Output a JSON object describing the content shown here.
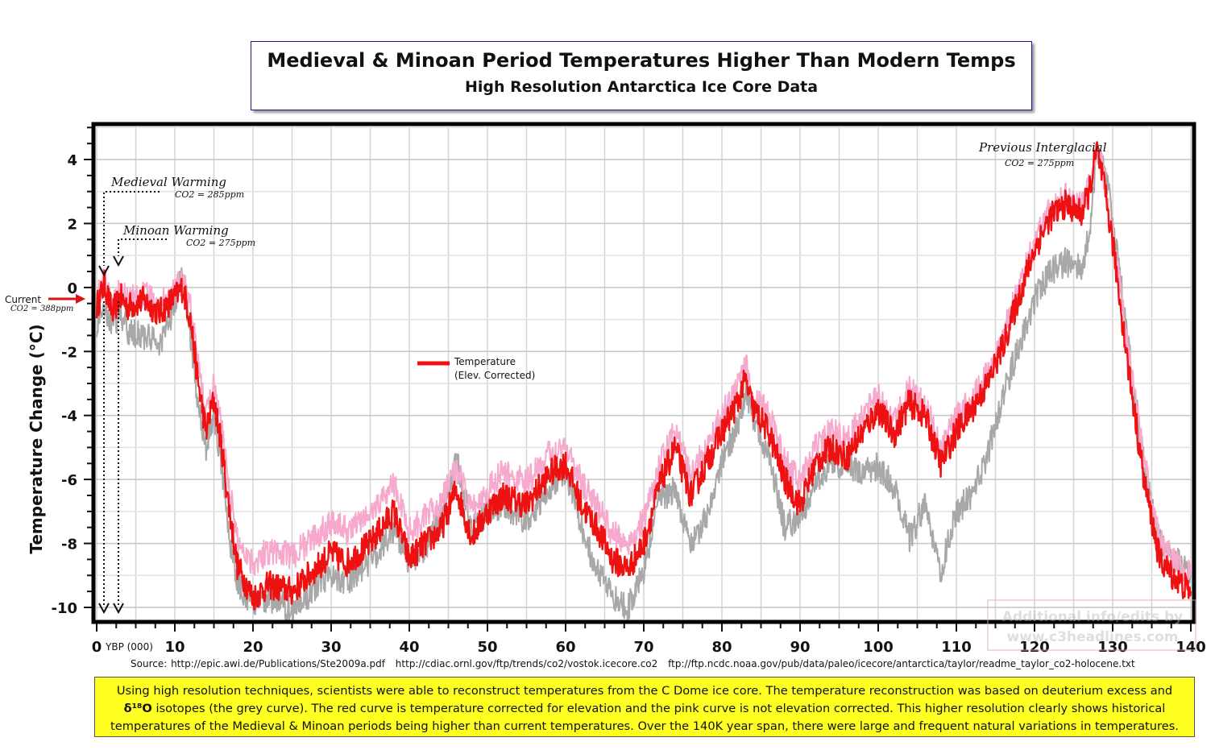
{
  "title": "Medieval & Minoan Period Temperatures Higher Than Modern Temps",
  "subtitle": "High Resolution Antarctica Ice Core Data",
  "chart_data": {
    "type": "line",
    "title": "Medieval & Minoan Period Temperatures Higher Than Modern Temps",
    "subtitle": "High Resolution Antarctica Ice Core Data",
    "xlabel": "YBP (000)",
    "ylabel": "Temperature Change (°C)",
    "xlim": [
      0,
      140
    ],
    "ylim": [
      -10.5,
      5
    ],
    "x_ticks": [
      "0",
      "10",
      "20",
      "30",
      "40",
      "50",
      "60",
      "70",
      "80",
      "90",
      "100",
      "110",
      "120",
      "130",
      "140"
    ],
    "y_ticks": [
      "4",
      "2",
      "0",
      "-2",
      "-4",
      "-6",
      "-8",
      "-10"
    ],
    "grid": true,
    "legend": {
      "placement": "center",
      "label_line1": "Temperature",
      "label_line2": "(Elev. Corrected)"
    },
    "series": [
      {
        "name": "Temperature (Elev. Corrected)",
        "color": "#ee1111",
        "x": [
          0,
          1,
          2,
          3,
          4,
          6,
          8,
          10,
          11,
          12,
          13,
          14,
          15,
          16,
          17,
          18,
          20,
          22,
          25,
          28,
          30,
          32,
          35,
          38,
          40,
          42,
          44,
          46,
          48,
          50,
          52,
          55,
          58,
          60,
          62,
          64,
          66,
          68,
          70,
          72,
          74,
          76,
          78,
          80,
          82,
          83,
          84,
          86,
          88,
          90,
          92,
          94,
          96,
          98,
          100,
          102,
          104,
          106,
          108,
          110,
          112,
          114,
          116,
          118,
          120,
          122,
          124,
          126,
          127,
          128,
          129,
          130,
          132,
          134,
          136,
          138,
          140
        ],
        "y": [
          -0.6,
          0.1,
          -0.8,
          -0.3,
          -0.6,
          -0.4,
          -0.8,
          -0.3,
          0.0,
          -1.0,
          -3.0,
          -4.5,
          -3.5,
          -5.0,
          -7.0,
          -8.7,
          -9.7,
          -9.3,
          -9.5,
          -8.8,
          -8.3,
          -8.6,
          -8.0,
          -7.0,
          -8.5,
          -8.0,
          -7.6,
          -6.3,
          -7.8,
          -7.0,
          -6.5,
          -6.8,
          -5.8,
          -5.5,
          -6.8,
          -7.5,
          -8.5,
          -8.8,
          -8.0,
          -6.2,
          -5.0,
          -6.5,
          -5.5,
          -4.5,
          -3.6,
          -2.9,
          -3.8,
          -4.5,
          -6.0,
          -6.8,
          -5.5,
          -5.0,
          -5.3,
          -4.5,
          -3.8,
          -4.6,
          -3.6,
          -4.0,
          -5.5,
          -4.5,
          -3.8,
          -3.0,
          -1.8,
          -0.3,
          1.2,
          2.2,
          2.6,
          2.3,
          3.0,
          4.3,
          3.0,
          1.4,
          -2.5,
          -6.0,
          -8.5,
          -9.1,
          -9.5
        ]
      },
      {
        "name": "Temperature (not elevation corrected)",
        "color": "#f6a9cd",
        "x": [
          0,
          1,
          2,
          3,
          4,
          6,
          8,
          10,
          11,
          12,
          13,
          14,
          15,
          16,
          17,
          18,
          20,
          22,
          25,
          28,
          30,
          32,
          35,
          38,
          40,
          42,
          44,
          46,
          48,
          50,
          52,
          55,
          58,
          60,
          62,
          64,
          66,
          68,
          70,
          72,
          74,
          76,
          78,
          80,
          82,
          83,
          84,
          86,
          88,
          90,
          92,
          94,
          96,
          98,
          100,
          102,
          104,
          106,
          108,
          110,
          112,
          114,
          116,
          118,
          120,
          122,
          124,
          126,
          127,
          128,
          129,
          130,
          132,
          134,
          136,
          138,
          140
        ],
        "y": [
          -0.4,
          0.3,
          -0.6,
          -0.1,
          -0.4,
          -0.2,
          -0.6,
          -0.1,
          0.3,
          -0.6,
          -2.5,
          -4.0,
          -3.0,
          -4.4,
          -6.3,
          -7.9,
          -8.6,
          -8.2,
          -8.4,
          -7.8,
          -7.3,
          -7.6,
          -7.1,
          -6.1,
          -7.6,
          -7.2,
          -6.8,
          -5.6,
          -7.0,
          -6.3,
          -5.8,
          -6.1,
          -5.2,
          -4.9,
          -6.1,
          -6.8,
          -7.7,
          -8.0,
          -7.3,
          -5.6,
          -4.5,
          -5.9,
          -5.0,
          -4.0,
          -3.1,
          -2.4,
          -3.3,
          -4.0,
          -5.4,
          -6.1,
          -5.0,
          -4.5,
          -4.8,
          -4.0,
          -3.4,
          -4.2,
          -3.2,
          -3.6,
          -5.0,
          -4.1,
          -3.5,
          -2.7,
          -1.5,
          0.0,
          1.4,
          2.4,
          2.8,
          2.5,
          3.2,
          4.5,
          3.3,
          1.7,
          -2.0,
          -5.4,
          -7.9,
          -8.6,
          -9.0
        ]
      },
      {
        "name": "Deuterium excess and δ18O isotopes",
        "color": "#a8a8a8",
        "x": [
          0,
          1,
          2,
          3,
          4,
          6,
          8,
          10,
          11,
          12,
          13,
          14,
          15,
          16,
          17,
          18,
          20,
          22,
          25,
          28,
          30,
          32,
          35,
          38,
          40,
          42,
          44,
          46,
          48,
          50,
          52,
          55,
          58,
          60,
          62,
          64,
          66,
          68,
          70,
          72,
          74,
          76,
          78,
          80,
          82,
          83,
          84,
          86,
          88,
          90,
          92,
          94,
          96,
          98,
          100,
          102,
          104,
          106,
          108,
          110,
          112,
          114,
          116,
          118,
          120,
          122,
          124,
          126,
          127,
          128,
          129,
          130,
          132,
          134,
          136,
          138,
          140
        ],
        "y": [
          -1.2,
          -0.5,
          -1.3,
          -0.8,
          -1.4,
          -1.5,
          -1.8,
          -0.6,
          0.6,
          -1.6,
          -3.6,
          -5.0,
          -4.0,
          -5.6,
          -7.8,
          -9.3,
          -9.9,
          -9.7,
          -10.1,
          -9.4,
          -8.9,
          -9.2,
          -8.6,
          -7.5,
          -8.6,
          -8.1,
          -7.3,
          -5.3,
          -7.6,
          -7.0,
          -6.8,
          -7.3,
          -6.2,
          -5.7,
          -7.5,
          -8.9,
          -9.6,
          -10.0,
          -8.9,
          -6.6,
          -6.3,
          -8.0,
          -7.2,
          -5.5,
          -4.3,
          -3.3,
          -4.1,
          -5.2,
          -7.5,
          -7.2,
          -6.0,
          -5.6,
          -5.5,
          -5.8,
          -5.6,
          -6.2,
          -7.8,
          -6.8,
          -8.9,
          -7.0,
          -6.5,
          -5.2,
          -3.4,
          -1.8,
          -0.4,
          0.5,
          0.8,
          0.6,
          1.7,
          4.4,
          3.7,
          2.2,
          -1.8,
          -5.5,
          -8.0,
          -8.5,
          -9.0
        ]
      }
    ],
    "annotations": [
      {
        "text": "Medieval Warming",
        "sub": "CO2 = 285ppm",
        "x": 1
      },
      {
        "text": "Minoan Warming",
        "sub": "CO2 = 275ppm",
        "x": 3
      },
      {
        "text": "Previous Interglacial",
        "sub": "CO2 = 275ppm",
        "x": 128
      },
      {
        "text": "Current",
        "sub": "CO2 = 388ppm",
        "y": -0.4
      }
    ]
  },
  "watermark": {
    "line1": "Additional info/edits by",
    "line2": "www.c3headlines.com"
  },
  "sources": [
    "Source: http://epic.awi.de/Publications/Ste2009a.pdf",
    "http://cdiac.ornl.gov/ftp/trends/co2/vostok.icecore.co2",
    "ftp://ftp.ncdc.noaa.gov/pub/data/paleo/icecore/antarctica/taylor/readme_taylor_co2-holocene.txt"
  ],
  "note": {
    "line1": "Using high resolution techniques, scientists were able to reconstruct temperatures from the C Dome ice core. The temperature reconstruction was based on deuterium excess and",
    "isotope": "δ¹⁸O",
    "line2": "isotopes (the grey curve). The red curve is temperature corrected for elevation and the pink curve is not elevation corrected. This higher resolution clearly shows historical",
    "line3": "temperatures of the Medieval & Minoan periods being higher than current temperatures. Over the 140K year span, there were large and frequent natural variations in temperatures."
  },
  "colors": {
    "red": "#ee1111",
    "pink": "#f6a9cd",
    "grey": "#a8a8a8",
    "note_bg": "#ffff22",
    "title_border": "#1a1a8c"
  }
}
